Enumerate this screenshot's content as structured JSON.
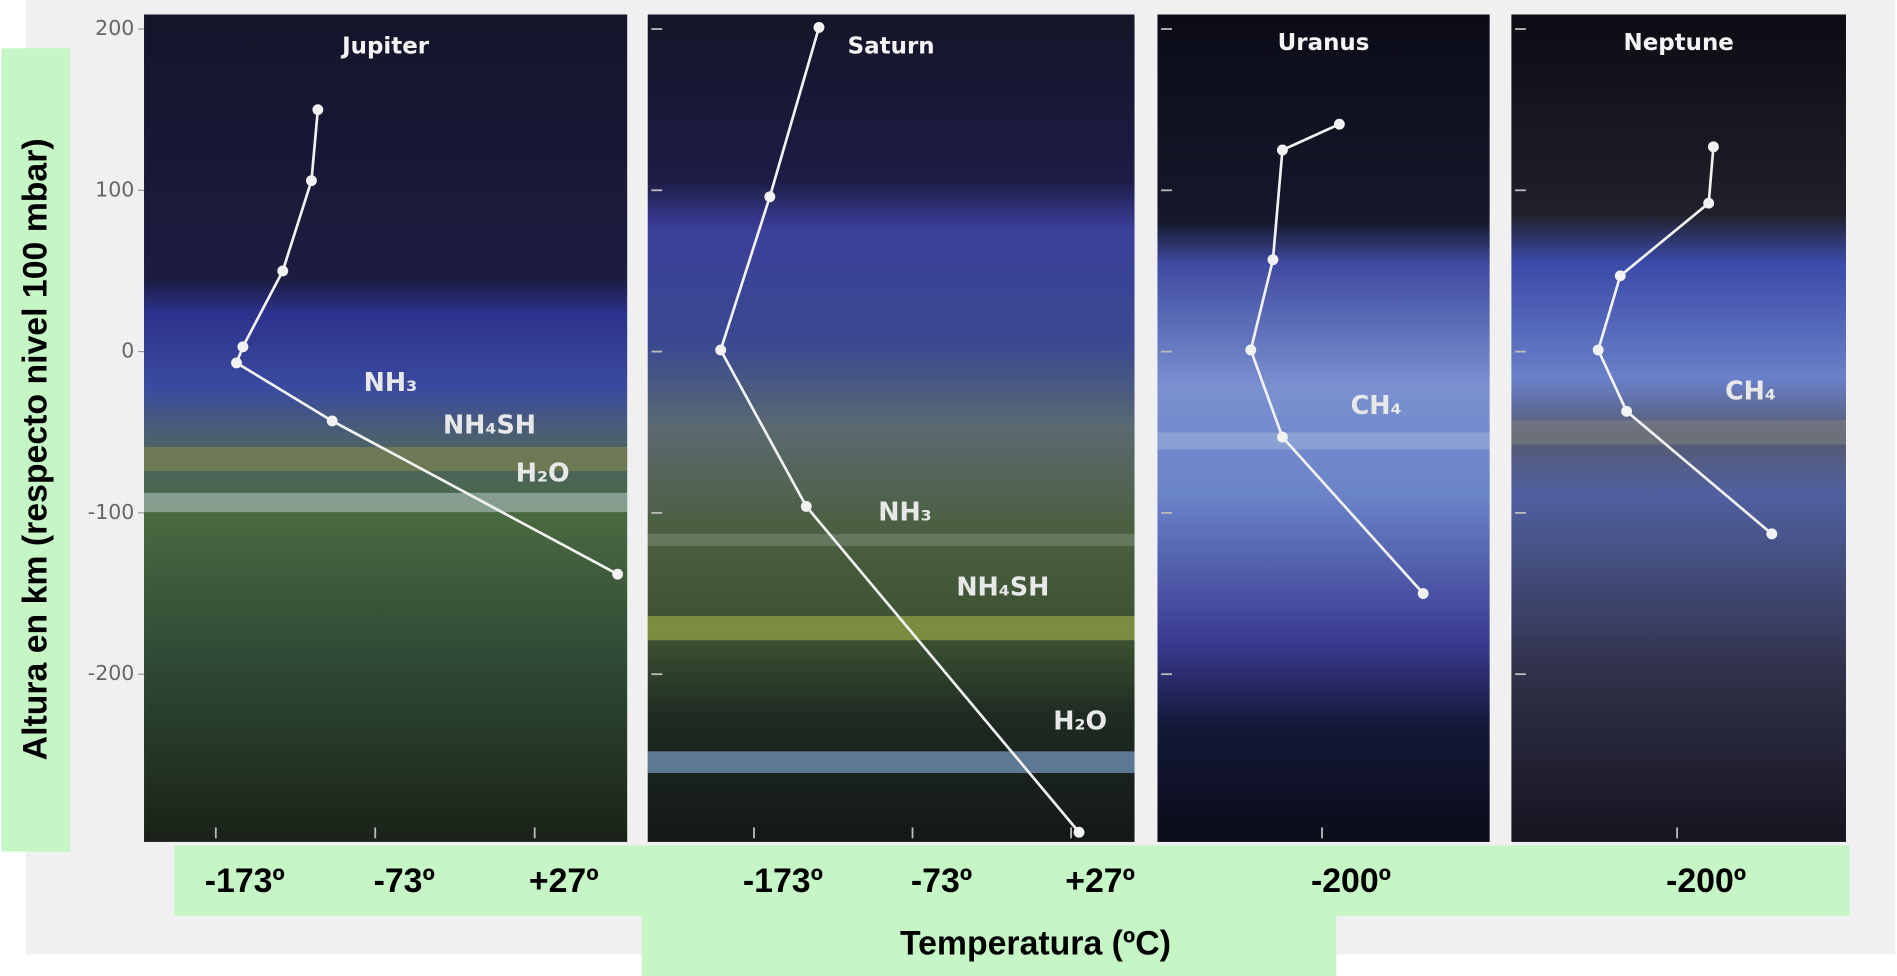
{
  "chart_data": [
    {
      "type": "line",
      "title": "Jupiter",
      "y_label": "Altura en km (respecto nivel 100 mbar)",
      "x": [
        -109,
        -113,
        -131,
        -156,
        -160,
        -100,
        79
      ],
      "y": [
        150,
        106,
        50,
        3,
        -7,
        -43,
        -138
      ],
      "xlim": [
        -218,
        85
      ],
      "ylim": [
        -304,
        209
      ],
      "xticks": [
        {
          "value": -173,
          "label": "-173º"
        },
        {
          "value": -73,
          "label": "-73º"
        },
        {
          "value": 27,
          "label": "+27º"
        }
      ],
      "yticks": [
        200,
        100,
        0,
        -100,
        -200
      ],
      "color": "#f2f2f2",
      "annotations": [
        "NH₃",
        "NH₄SH",
        "H₂O"
      ]
    },
    {
      "type": "line",
      "title": "Saturn",
      "x_label": "Temperatura (ºC)",
      "x": [
        -132,
        -163,
        -194,
        -140,
        32
      ],
      "y": [
        201,
        96,
        1,
        -96,
        -298
      ],
      "xlim": [
        -240,
        67
      ],
      "ylim": [
        -304,
        209
      ],
      "xticks": [
        {
          "value": -173,
          "label": "-173º"
        },
        {
          "value": -73,
          "label": "-73º"
        },
        {
          "value": 27,
          "label": "+27º"
        }
      ],
      "yticks": [
        200,
        100,
        0,
        -100,
        -200
      ],
      "color": "#f2f2f2",
      "annotations": [
        "NH₃",
        "NH₄SH",
        "H₂O"
      ]
    },
    {
      "type": "line",
      "title": "Uranus",
      "x": [
        -189,
        -225,
        -231,
        -245,
        -225,
        -136
      ],
      "y": [
        141,
        125,
        57,
        1,
        -53,
        -150
      ],
      "xlim": [
        -304,
        -94
      ],
      "ylim": [
        -304,
        209
      ],
      "xticks": [
        {
          "value": -200,
          "label": "-200º"
        }
      ],
      "yticks": [
        200,
        100,
        0,
        -100,
        -200
      ],
      "color": "#f2f2f2",
      "annotations": [
        "CH₄"
      ]
    },
    {
      "type": "line",
      "title": "Neptune",
      "x": [
        -177,
        -180,
        -236,
        -250,
        -232,
        -140
      ],
      "y": [
        127,
        92,
        47,
        1,
        -37,
        -113
      ],
      "xlim": [
        -305,
        -93
      ],
      "ylim": [
        -304,
        209
      ],
      "xticks": [
        {
          "value": -200,
          "label": "-200º"
        }
      ],
      "yticks": [
        200,
        100,
        0,
        -100,
        -200
      ],
      "color": "#f2f2f2",
      "annotations": [
        "CH₄"
      ]
    }
  ]
}
